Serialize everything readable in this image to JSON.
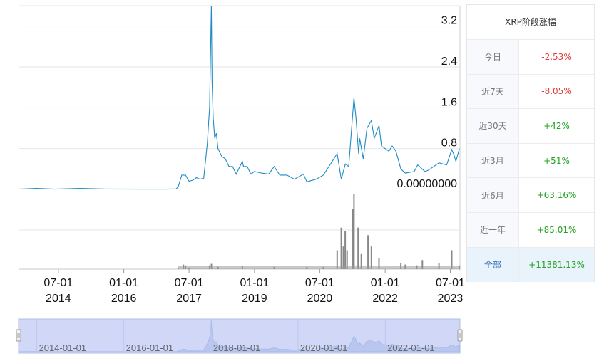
{
  "chart_data": {
    "type": "line",
    "price_axis": {
      "ticks": [
        "0.00000000",
        "0.8",
        "1.6",
        "2.4",
        "3.2"
      ],
      "tick_values": [
        0,
        0.8,
        1.6,
        2.4,
        3.2
      ],
      "ylim": [
        0,
        3.6
      ]
    },
    "x_axis": {
      "tick_dates": [
        "2014-07-01",
        "2016-01-01",
        "2017-07-01",
        "2019-01-01",
        "2020-07-01",
        "2022-01-01",
        "2023-07-01"
      ],
      "tick_labels": [
        [
          "07-01",
          "2014"
        ],
        [
          "01-01",
          "2016"
        ],
        [
          "07-01",
          "2017"
        ],
        [
          "01-01",
          "2019"
        ],
        [
          "07-01",
          "2020"
        ],
        [
          "01-01",
          "2022"
        ],
        [
          "07-01",
          "2023"
        ]
      ],
      "xlim": [
        "2013-08-01",
        "2023-09-20"
      ]
    },
    "series": [
      {
        "type": "line",
        "color": "#1f8bc2",
        "points": [
          [
            "2013-08-01",
            0.005
          ],
          [
            "2014-01-01",
            0.02
          ],
          [
            "2014-06-01",
            0.006
          ],
          [
            "2015-01-01",
            0.02
          ],
          [
            "2015-08-01",
            0.008
          ],
          [
            "2016-06-01",
            0.006
          ],
          [
            "2017-01-01",
            0.006
          ],
          [
            "2017-03-15",
            0.01
          ],
          [
            "2017-04-01",
            0.05
          ],
          [
            "2017-05-01",
            0.28
          ],
          [
            "2017-06-01",
            0.28
          ],
          [
            "2017-07-01",
            0.16
          ],
          [
            "2017-08-01",
            0.18
          ],
          [
            "2017-09-01",
            0.23
          ],
          [
            "2017-10-01",
            0.2
          ],
          [
            "2017-11-01",
            0.22
          ],
          [
            "2017-12-01",
            0.9
          ],
          [
            "2017-12-20",
            1.6
          ],
          [
            "2018-01-04",
            3.6
          ],
          [
            "2018-01-10",
            2.1
          ],
          [
            "2018-01-20",
            1.4
          ],
          [
            "2018-02-01",
            1.0
          ],
          [
            "2018-02-15",
            1.1
          ],
          [
            "2018-03-01",
            0.8
          ],
          [
            "2018-04-01",
            0.65
          ],
          [
            "2018-05-01",
            0.6
          ],
          [
            "2018-06-01",
            0.45
          ],
          [
            "2018-07-01",
            0.45
          ],
          [
            "2018-08-01",
            0.3
          ],
          [
            "2018-09-21",
            0.55
          ],
          [
            "2018-10-01",
            0.45
          ],
          [
            "2018-11-01",
            0.45
          ],
          [
            "2018-12-01",
            0.3
          ],
          [
            "2019-01-01",
            0.35
          ],
          [
            "2019-03-01",
            0.32
          ],
          [
            "2019-05-01",
            0.3
          ],
          [
            "2019-06-15",
            0.45
          ],
          [
            "2019-08-01",
            0.28
          ],
          [
            "2019-10-01",
            0.28
          ],
          [
            "2019-12-01",
            0.2
          ],
          [
            "2020-02-15",
            0.3
          ],
          [
            "2020-03-15",
            0.15
          ],
          [
            "2020-06-01",
            0.2
          ],
          [
            "2020-08-01",
            0.28
          ],
          [
            "2020-11-24",
            0.7
          ],
          [
            "2020-12-29",
            0.2
          ],
          [
            "2021-02-01",
            0.5
          ],
          [
            "2021-03-01",
            0.45
          ],
          [
            "2021-04-14",
            1.8
          ],
          [
            "2021-05-01",
            1.4
          ],
          [
            "2021-05-23",
            0.7
          ],
          [
            "2021-06-01",
            1.0
          ],
          [
            "2021-07-01",
            0.6
          ],
          [
            "2021-08-01",
            1.2
          ],
          [
            "2021-09-07",
            1.35
          ],
          [
            "2021-10-01",
            1.0
          ],
          [
            "2021-11-10",
            1.25
          ],
          [
            "2021-12-01",
            0.85
          ],
          [
            "2022-01-01",
            0.8
          ],
          [
            "2022-02-01",
            0.75
          ],
          [
            "2022-03-01",
            0.85
          ],
          [
            "2022-04-01",
            0.75
          ],
          [
            "2022-05-12",
            0.4
          ],
          [
            "2022-06-18",
            0.32
          ],
          [
            "2022-09-01",
            0.35
          ],
          [
            "2022-10-01",
            0.48
          ],
          [
            "2022-12-01",
            0.35
          ],
          [
            "2023-01-01",
            0.38
          ],
          [
            "2023-03-28",
            0.52
          ],
          [
            "2023-06-01",
            0.48
          ],
          [
            "2023-07-13",
            0.78
          ],
          [
            "2023-08-01",
            0.68
          ],
          [
            "2023-08-17",
            0.55
          ],
          [
            "2023-09-15",
            0.8
          ]
        ]
      },
      {
        "type": "volume",
        "color": "#888888",
        "relative_points": [
          [
            "2017-04-01",
            0.02
          ],
          [
            "2017-05-15",
            0.06
          ],
          [
            "2017-06-01",
            0.05
          ],
          [
            "2017-07-01",
            0.02
          ],
          [
            "2017-12-20",
            0.05
          ],
          [
            "2018-01-05",
            0.07
          ],
          [
            "2018-03-01",
            0.03
          ],
          [
            "2018-09-21",
            0.04
          ],
          [
            "2019-06-15",
            0.03
          ],
          [
            "2020-03-15",
            0.03
          ],
          [
            "2020-08-01",
            0.03
          ],
          [
            "2020-11-24",
            0.25
          ],
          [
            "2020-12-29",
            0.55
          ],
          [
            "2021-01-15",
            0.3
          ],
          [
            "2021-01-31",
            0.5
          ],
          [
            "2021-02-15",
            0.25
          ],
          [
            "2021-04-06",
            0.8
          ],
          [
            "2021-04-14",
            1.0
          ],
          [
            "2021-05-19",
            0.55
          ],
          [
            "2021-06-15",
            0.2
          ],
          [
            "2021-08-10",
            0.45
          ],
          [
            "2021-09-07",
            0.3
          ],
          [
            "2021-11-10",
            0.15
          ],
          [
            "2022-05-12",
            0.08
          ],
          [
            "2022-06-18",
            0.06
          ],
          [
            "2022-09-23",
            0.05
          ],
          [
            "2022-11-09",
            0.12
          ],
          [
            "2023-03-28",
            0.08
          ],
          [
            "2023-07-13",
            0.25
          ],
          [
            "2023-09-15",
            0.05
          ]
        ]
      }
    ],
    "navigator": {
      "labels": [
        "2014-01-01",
        "2016-01-01",
        "2018-01-01",
        "2020-01-01",
        "2022-01-01"
      ]
    }
  },
  "stats": {
    "title": "XRP阶段涨幅",
    "rows": [
      {
        "period": "今日",
        "value": "-2.53%",
        "color": "#e03c3c"
      },
      {
        "period": "近7天",
        "value": "-8.05%",
        "color": "#e03c3c"
      },
      {
        "period": "近30天",
        "value": "+42%",
        "color": "#22a322"
      },
      {
        "period": "近3月",
        "value": "+51%",
        "color": "#22a322"
      },
      {
        "period": "近6月",
        "value": "+63.16%",
        "color": "#22a322"
      },
      {
        "period": "近一年",
        "value": "+85.01%",
        "color": "#22a322"
      },
      {
        "period": "全部",
        "value": "+11381.13%",
        "color": "#22a322",
        "active": true
      }
    ]
  }
}
